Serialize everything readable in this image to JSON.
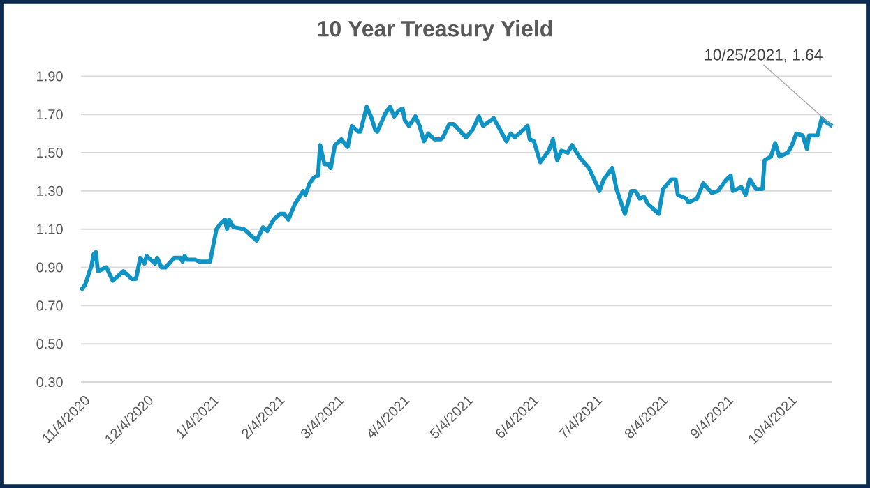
{
  "chart_data": {
    "type": "line",
    "title": "10 Year Treasury Yield",
    "x": [
      "2020-11-04",
      "2020-11-06",
      "2020-11-09",
      "2020-11-10",
      "2020-11-11",
      "2020-11-12",
      "2020-11-16",
      "2020-11-19",
      "2020-11-24",
      "2020-11-28",
      "2020-11-30",
      "2020-12-02",
      "2020-12-04",
      "2020-12-05",
      "2020-12-09",
      "2020-12-10",
      "2020-12-12",
      "2020-12-14",
      "2020-12-18",
      "2020-12-21",
      "2020-12-22",
      "2020-12-23",
      "2020-12-24",
      "2020-12-28",
      "2020-12-30",
      "2021-01-04",
      "2021-01-07",
      "2021-01-09",
      "2021-01-11",
      "2021-01-12",
      "2021-01-13",
      "2021-01-15",
      "2021-01-20",
      "2021-01-24",
      "2021-01-26",
      "2021-01-29",
      "2021-01-31",
      "2021-02-03",
      "2021-02-06",
      "2021-02-08",
      "2021-02-10",
      "2021-02-13",
      "2021-02-17",
      "2021-02-18",
      "2021-02-20",
      "2021-02-22",
      "2021-02-24",
      "2021-02-25",
      "2021-02-27",
      "2021-03-01",
      "2021-03-02",
      "2021-03-04",
      "2021-03-07",
      "2021-03-09",
      "2021-03-10",
      "2021-03-12",
      "2021-03-15",
      "2021-03-16",
      "2021-03-19",
      "2021-03-21",
      "2021-03-23",
      "2021-03-24",
      "2021-03-28",
      "2021-03-30",
      "2021-04-01",
      "2021-04-03",
      "2021-04-05",
      "2021-04-06",
      "2021-04-08",
      "2021-04-11",
      "2021-04-13",
      "2021-04-15",
      "2021-04-17",
      "2021-04-20",
      "2021-04-23",
      "2021-04-24",
      "2021-04-27",
      "2021-04-29",
      "2021-05-05",
      "2021-05-08",
      "2021-05-11",
      "2021-05-13",
      "2021-05-18",
      "2021-05-20",
      "2021-05-24",
      "2021-05-26",
      "2021-05-28",
      "2021-06-03",
      "2021-06-04",
      "2021-06-06",
      "2021-06-09",
      "2021-06-13",
      "2021-06-15",
      "2021-06-17",
      "2021-06-19",
      "2021-06-22",
      "2021-06-24",
      "2021-06-28",
      "2021-07-02",
      "2021-07-07",
      "2021-07-09",
      "2021-07-13",
      "2021-07-15",
      "2021-07-19",
      "2021-07-22",
      "2021-07-24",
      "2021-07-26",
      "2021-07-28",
      "2021-07-30",
      "2021-08-01",
      "2021-08-04",
      "2021-08-06",
      "2021-08-10",
      "2021-08-12",
      "2021-08-13",
      "2021-08-17",
      "2021-08-18",
      "2021-08-22",
      "2021-08-25",
      "2021-08-29",
      "2021-09-01",
      "2021-09-05",
      "2021-09-07",
      "2021-09-08",
      "2021-09-12",
      "2021-09-14",
      "2021-09-16",
      "2021-09-19",
      "2021-09-22",
      "2021-09-23",
      "2021-09-26",
      "2021-09-28",
      "2021-09-30",
      "2021-10-04",
      "2021-10-06",
      "2021-10-08",
      "2021-10-11",
      "2021-10-13",
      "2021-10-14",
      "2021-10-18",
      "2021-10-20",
      "2021-10-22",
      "2021-10-25"
    ],
    "series": [
      {
        "color": "#0f93c5",
        "values": [
          0.78,
          0.81,
          0.91,
          0.97,
          0.98,
          0.88,
          0.9,
          0.83,
          0.88,
          0.84,
          0.84,
          0.95,
          0.92,
          0.96,
          0.92,
          0.95,
          0.9,
          0.9,
          0.95,
          0.95,
          0.93,
          0.96,
          0.94,
          0.94,
          0.93,
          0.93,
          1.1,
          1.13,
          1.15,
          1.1,
          1.15,
          1.11,
          1.1,
          1.06,
          1.04,
          1.11,
          1.09,
          1.15,
          1.18,
          1.18,
          1.15,
          1.23,
          1.3,
          1.28,
          1.34,
          1.37,
          1.38,
          1.54,
          1.44,
          1.44,
          1.42,
          1.54,
          1.57,
          1.54,
          1.53,
          1.64,
          1.61,
          1.61,
          1.74,
          1.69,
          1.62,
          1.61,
          1.71,
          1.74,
          1.69,
          1.72,
          1.73,
          1.67,
          1.64,
          1.69,
          1.64,
          1.56,
          1.6,
          1.57,
          1.57,
          1.58,
          1.65,
          1.65,
          1.58,
          1.62,
          1.69,
          1.64,
          1.68,
          1.64,
          1.56,
          1.6,
          1.58,
          1.64,
          1.57,
          1.56,
          1.45,
          1.51,
          1.57,
          1.46,
          1.51,
          1.5,
          1.54,
          1.47,
          1.42,
          1.3,
          1.36,
          1.42,
          1.31,
          1.18,
          1.3,
          1.3,
          1.26,
          1.27,
          1.23,
          1.21,
          1.18,
          1.31,
          1.36,
          1.36,
          1.28,
          1.26,
          1.24,
          1.26,
          1.34,
          1.29,
          1.3,
          1.36,
          1.38,
          1.3,
          1.32,
          1.28,
          1.36,
          1.31,
          1.31,
          1.46,
          1.48,
          1.55,
          1.48,
          1.5,
          1.54,
          1.6,
          1.59,
          1.52,
          1.59,
          1.59,
          1.68,
          1.66,
          1.64
        ]
      }
    ],
    "xlim": [
      "2020-11-04",
      "2021-10-25"
    ],
    "xticks": [
      {
        "value": "2020-11-04",
        "label": "11/4/2020"
      },
      {
        "value": "2020-12-04",
        "label": "12/4/2020"
      },
      {
        "value": "2021-01-04",
        "label": "1/4/2021"
      },
      {
        "value": "2021-02-04",
        "label": "2/4/2021"
      },
      {
        "value": "2021-03-04",
        "label": "3/4/2021"
      },
      {
        "value": "2021-04-04",
        "label": "4/4/2021"
      },
      {
        "value": "2021-05-04",
        "label": "5/4/2021"
      },
      {
        "value": "2021-06-04",
        "label": "6/4/2021"
      },
      {
        "value": "2021-07-04",
        "label": "7/4/2021"
      },
      {
        "value": "2021-08-04",
        "label": "8/4/2021"
      },
      {
        "value": "2021-09-04",
        "label": "9/4/2021"
      },
      {
        "value": "2021-10-04",
        "label": "10/4/2021"
      }
    ],
    "ylim": [
      0.3,
      1.9
    ],
    "yticks": [
      {
        "value": 0.3,
        "label": "0.30"
      },
      {
        "value": 0.5,
        "label": "0.50"
      },
      {
        "value": 0.7,
        "label": "0.70"
      },
      {
        "value": 0.9,
        "label": "0.90"
      },
      {
        "value": 1.1,
        "label": "1.10"
      },
      {
        "value": 1.3,
        "label": "1.30"
      },
      {
        "value": 1.5,
        "label": "1.50"
      },
      {
        "value": 1.7,
        "label": "1.70"
      },
      {
        "value": 1.9,
        "label": "1.90"
      }
    ],
    "grid": "y",
    "annotations": [
      {
        "text": "10/25/2021,  1.64",
        "x": "2021-10-25",
        "y": 1.64
      }
    ]
  }
}
